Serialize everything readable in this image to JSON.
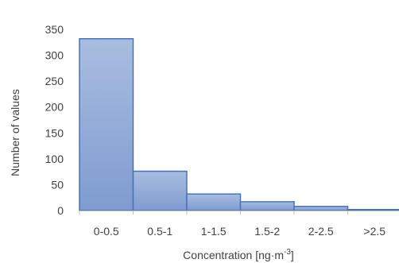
{
  "chart_data": {
    "type": "bar",
    "categories": [
      "0-0.5",
      "0.5-1",
      "1-1.5",
      "1.5-2",
      "2-2.5",
      ">2.5"
    ],
    "values": [
      332,
      76,
      32,
      17,
      8,
      2
    ],
    "ylabel": "Number of values",
    "xlabel_main": "Concentration  [ng·m",
    "xlabel_sup": "-3",
    "xlabel_end": "]",
    "ylim": [
      0,
      350
    ],
    "yticks": [
      0,
      50,
      100,
      150,
      200,
      250,
      300,
      350
    ],
    "grid": false,
    "legend": "none",
    "colors": {
      "bar_fill_top": "#a9bddf",
      "bar_fill_bottom": "#7f9bd0",
      "bar_stroke": "#4a72b5",
      "axis": "#bfbfbf"
    }
  }
}
